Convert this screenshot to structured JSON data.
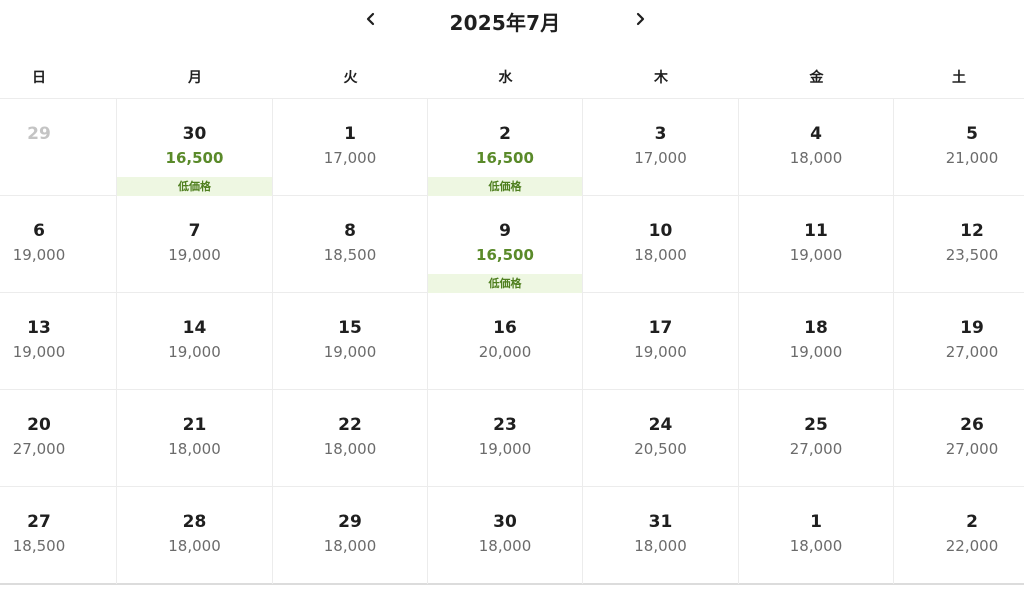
{
  "header": {
    "title": "2025年7月",
    "prev_icon": "chevron-left-icon",
    "next_icon": "chevron-right-icon"
  },
  "weekdays": [
    "日",
    "月",
    "火",
    "水",
    "木",
    "金",
    "土"
  ],
  "low_label": "低価格",
  "weeks": [
    [
      {
        "day": "29",
        "price": "",
        "low": false,
        "disabled": true
      },
      {
        "day": "30",
        "price": "16,500",
        "low": true,
        "disabled": false
      },
      {
        "day": "1",
        "price": "17,000",
        "low": false,
        "disabled": false
      },
      {
        "day": "2",
        "price": "16,500",
        "low": true,
        "disabled": false
      },
      {
        "day": "3",
        "price": "17,000",
        "low": false,
        "disabled": false
      },
      {
        "day": "4",
        "price": "18,000",
        "low": false,
        "disabled": false
      },
      {
        "day": "5",
        "price": "21,000",
        "low": false,
        "disabled": false
      }
    ],
    [
      {
        "day": "6",
        "price": "19,000",
        "low": false,
        "disabled": false
      },
      {
        "day": "7",
        "price": "19,000",
        "low": false,
        "disabled": false
      },
      {
        "day": "8",
        "price": "18,500",
        "low": false,
        "disabled": false
      },
      {
        "day": "9",
        "price": "16,500",
        "low": true,
        "disabled": false
      },
      {
        "day": "10",
        "price": "18,000",
        "low": false,
        "disabled": false
      },
      {
        "day": "11",
        "price": "19,000",
        "low": false,
        "disabled": false
      },
      {
        "day": "12",
        "price": "23,500",
        "low": false,
        "disabled": false
      }
    ],
    [
      {
        "day": "13",
        "price": "19,000",
        "low": false,
        "disabled": false
      },
      {
        "day": "14",
        "price": "19,000",
        "low": false,
        "disabled": false
      },
      {
        "day": "15",
        "price": "19,000",
        "low": false,
        "disabled": false
      },
      {
        "day": "16",
        "price": "20,000",
        "low": false,
        "disabled": false
      },
      {
        "day": "17",
        "price": "19,000",
        "low": false,
        "disabled": false
      },
      {
        "day": "18",
        "price": "19,000",
        "low": false,
        "disabled": false
      },
      {
        "day": "19",
        "price": "27,000",
        "low": false,
        "disabled": false
      }
    ],
    [
      {
        "day": "20",
        "price": "27,000",
        "low": false,
        "disabled": false
      },
      {
        "day": "21",
        "price": "18,000",
        "low": false,
        "disabled": false
      },
      {
        "day": "22",
        "price": "18,000",
        "low": false,
        "disabled": false
      },
      {
        "day": "23",
        "price": "19,000",
        "low": false,
        "disabled": false
      },
      {
        "day": "24",
        "price": "20,500",
        "low": false,
        "disabled": false
      },
      {
        "day": "25",
        "price": "27,000",
        "low": false,
        "disabled": false
      },
      {
        "day": "26",
        "price": "27,000",
        "low": false,
        "disabled": false
      }
    ],
    [
      {
        "day": "27",
        "price": "18,500",
        "low": false,
        "disabled": false
      },
      {
        "day": "28",
        "price": "18,000",
        "low": false,
        "disabled": false
      },
      {
        "day": "29",
        "price": "18,000",
        "low": false,
        "disabled": false
      },
      {
        "day": "30",
        "price": "18,000",
        "low": false,
        "disabled": false
      },
      {
        "day": "31",
        "price": "18,000",
        "low": false,
        "disabled": false
      },
      {
        "day": "1",
        "price": "18,000",
        "low": false,
        "disabled": false
      },
      {
        "day": "2",
        "price": "22,000",
        "low": false,
        "disabled": false
      }
    ]
  ],
  "colors": {
    "low_price": "#5a8a2a",
    "low_badge_bg": "#eef7e2",
    "price": "#6b6b6b",
    "disabled_day": "#c4c4c4"
  }
}
